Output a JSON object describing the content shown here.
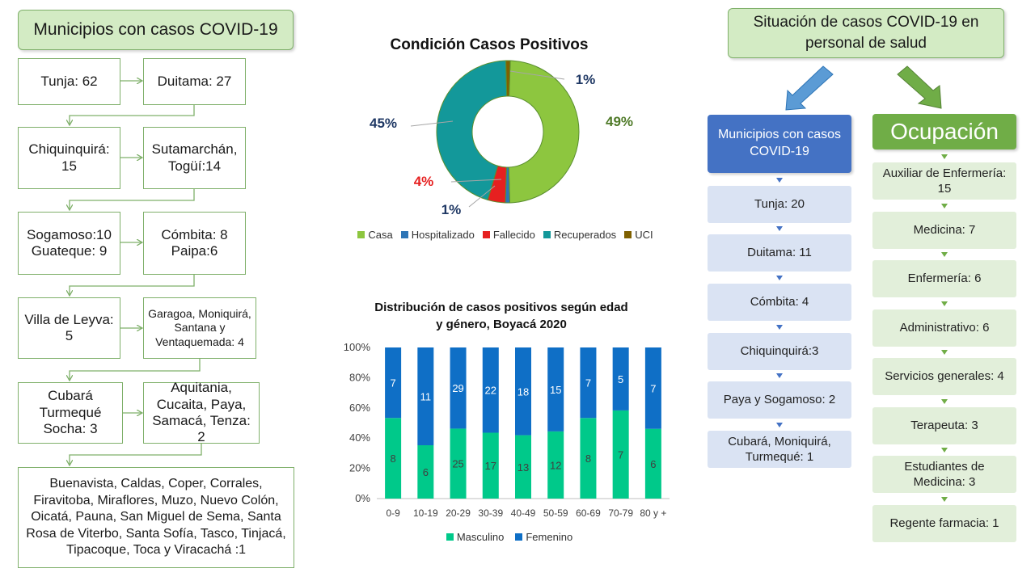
{
  "left": {
    "title": "Municipios con casos COVID-19",
    "boxes": {
      "tunja": "Tunja: 62",
      "duitama": "Duitama: 27",
      "chiquinquira": "Chiquinquirá: 15",
      "sutamarchan": "Sutamarchán, Togüí:14",
      "sogamoso": "Sogamoso:10 Guateque: 9",
      "combita": "Cómbita: 8 Paipa:6",
      "villa": "Villa de Leyva: 5",
      "garagoa": "Garagoa, Moniquirá, Santana y Ventaquemada: 4",
      "cubara": "Cubará Turmequé Socha: 3",
      "aquitania": "Aquitania, Cucaita, Paya, Samacá, Tenza: 2",
      "rest": "Buenavista, Caldas, Coper, Corrales, Firavitoba, Miraflores, Muzo, Nuevo Colón, Oicatá, Pauna, San Miguel de Sema, Santa Rosa de Viterbo, Santa Sofía, Tasco, Tinjacá, Tipacoque, Toca y Viracachá :1"
    }
  },
  "donut": {
    "title": "Condición Casos Positivos",
    "colors": {
      "Casa": "#8dc63f",
      "Hospitalizado": "#2e75b6",
      "Fallecido": "#e62020",
      "Recuperados": "#13989a",
      "UCI": "#7f6000"
    },
    "label_colors": {
      "Casa": "#4f7a28",
      "Hospitalizado": "#1f3864",
      "Fallecido": "#e62020",
      "Recuperados": "#1f3864",
      "UCI": "#1f3864"
    }
  },
  "bar": {
    "title_line1": "Distribución de casos positivos según edad",
    "title_line2": "y género, Boyacá 2020",
    "colors": {
      "Masculino": "#00c98a",
      "Femenino": "#0f6fc6"
    }
  },
  "right": {
    "title": "Situación de casos COVID-19 en personal de salud",
    "municipios_header": "Municipios con casos COVID-19",
    "municipios": [
      "Tunja: 20",
      "Duitama: 11",
      "Cómbita: 4",
      "Chiquinquirá:3",
      "Paya y Sogamoso: 2",
      "Cubará, Moniquirá, Turmequé: 1"
    ],
    "ocupacion_header": "Ocupación",
    "ocupacion": [
      "Auxiliar de Enfermería: 15",
      "Medicina: 7",
      "Enfermería: 6",
      "Administrativo:  6",
      "Servicios generales: 4",
      "Terapeuta: 3",
      "Estudiantes de Medicina: 3",
      "Regente farmacia: 1"
    ]
  },
  "chart_data": [
    {
      "type": "pie",
      "title": "Condición Casos Positivos",
      "labels": [
        "Casa",
        "Hospitalizado",
        "Fallecido",
        "Recuperados",
        "UCI"
      ],
      "values": [
        49,
        1,
        4,
        45,
        1
      ],
      "value_labels": [
        "49%",
        "1%",
        "4%",
        "45%",
        "1%"
      ],
      "legend": "bottom",
      "donut": true
    },
    {
      "type": "bar",
      "stacked_percent": true,
      "title": "Distribución de casos positivos según edad y género, Boyacá 2020",
      "categories": [
        "0-9",
        "10-19",
        "20-29",
        "30-39",
        "40-49",
        "50-59",
        "60-69",
        "70-79",
        "80 y +"
      ],
      "series": [
        {
          "name": "Masculino",
          "values": [
            8,
            6,
            25,
            17,
            13,
            12,
            8,
            7,
            6
          ]
        },
        {
          "name": "Femenino",
          "values": [
            7,
            11,
            29,
            22,
            18,
            15,
            7,
            5,
            7
          ]
        }
      ],
      "ytick_labels": [
        "0%",
        "20%",
        "40%",
        "60%",
        "80%",
        "100%"
      ],
      "ylim": [
        0,
        100
      ],
      "legend": "bottom",
      "grid": false
    }
  ]
}
